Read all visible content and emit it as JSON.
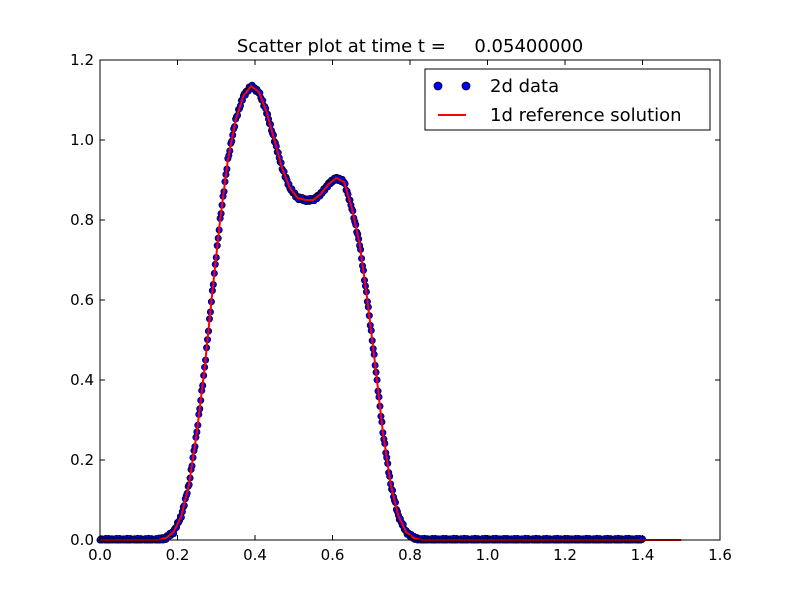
{
  "chart_data": {
    "type": "scatter",
    "title": "Scatter plot at time t =     0.05400000",
    "xlabel": "",
    "ylabel": "",
    "xlim": [
      0.0,
      1.6
    ],
    "ylim": [
      0.0,
      1.2
    ],
    "x_ticks": [
      "0.0",
      "0.2",
      "0.4",
      "0.6",
      "0.8",
      "1.0",
      "1.2",
      "1.4",
      "1.6"
    ],
    "y_ticks": [
      "0.0",
      "0.2",
      "0.4",
      "0.6",
      "0.8",
      "1.0",
      "1.2"
    ],
    "grid": false,
    "legend_position": "top-right",
    "series": [
      {
        "name": "2d data",
        "kind": "scatter",
        "color": "#0000ff",
        "x_range": [
          0.0,
          1.4
        ],
        "x": [
          0.0,
          0.05,
          0.1,
          0.15,
          0.17,
          0.19,
          0.21,
          0.23,
          0.25,
          0.27,
          0.29,
          0.31,
          0.33,
          0.35,
          0.37,
          0.39,
          0.41,
          0.43,
          0.45,
          0.47,
          0.49,
          0.51,
          0.53,
          0.55,
          0.57,
          0.59,
          0.61,
          0.63,
          0.65,
          0.67,
          0.69,
          0.71,
          0.73,
          0.75,
          0.77,
          0.79,
          0.81,
          0.83,
          0.86,
          0.9,
          1.0,
          1.1,
          1.2,
          1.3,
          1.4
        ],
        "y": [
          0.0,
          0.0,
          0.0,
          0.0,
          0.005,
          0.02,
          0.06,
          0.14,
          0.27,
          0.43,
          0.62,
          0.8,
          0.95,
          1.05,
          1.11,
          1.135,
          1.12,
          1.07,
          1.0,
          0.93,
          0.88,
          0.855,
          0.85,
          0.85,
          0.865,
          0.89,
          0.905,
          0.895,
          0.83,
          0.74,
          0.6,
          0.44,
          0.27,
          0.14,
          0.06,
          0.02,
          0.005,
          0.0,
          0.0,
          0.0,
          0.0,
          0.0,
          0.0,
          0.0,
          0.0
        ]
      },
      {
        "name": "1d reference solution",
        "kind": "line",
        "color": "#ff0000",
        "x_range": [
          0.0,
          1.5
        ],
        "x": [
          0.0,
          0.05,
          0.1,
          0.15,
          0.17,
          0.19,
          0.21,
          0.23,
          0.25,
          0.27,
          0.29,
          0.31,
          0.33,
          0.35,
          0.37,
          0.39,
          0.41,
          0.43,
          0.45,
          0.47,
          0.49,
          0.51,
          0.53,
          0.55,
          0.57,
          0.59,
          0.61,
          0.63,
          0.65,
          0.67,
          0.69,
          0.71,
          0.73,
          0.75,
          0.77,
          0.79,
          0.81,
          0.83,
          0.86,
          0.9,
          1.0,
          1.1,
          1.2,
          1.3,
          1.4,
          1.5
        ],
        "y": [
          0.0,
          0.0,
          0.0,
          0.0,
          0.005,
          0.02,
          0.06,
          0.14,
          0.27,
          0.43,
          0.62,
          0.8,
          0.95,
          1.05,
          1.11,
          1.135,
          1.12,
          1.07,
          1.0,
          0.93,
          0.88,
          0.855,
          0.85,
          0.85,
          0.865,
          0.89,
          0.905,
          0.895,
          0.83,
          0.74,
          0.6,
          0.44,
          0.27,
          0.14,
          0.06,
          0.02,
          0.005,
          0.0,
          0.0,
          0.0,
          0.0,
          0.0,
          0.0,
          0.0,
          0.0,
          0.0
        ]
      }
    ]
  }
}
